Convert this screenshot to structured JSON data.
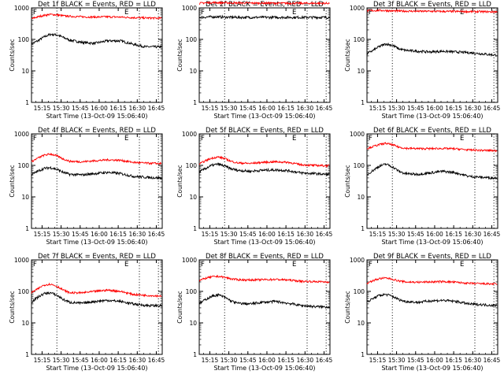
{
  "ylabel": "Counts/sec",
  "xlabel": "Start Time (13-Oct-09 15:06:40)",
  "xticks": [
    "15:15",
    "15:30",
    "15:45",
    "16:00",
    "16:15",
    "16:30",
    "16:45"
  ],
  "yticks": [
    "1",
    "10",
    "100",
    "1000"
  ],
  "colors": {
    "events": "#000000",
    "lld": "#ff0000"
  },
  "chart_data": [
    {
      "type": "line",
      "title": "Det 1f BLACK = Events, RED = LLD",
      "yscale": "log",
      "ylim": [
        1,
        1000
      ],
      "xlim_minutes": [
        0,
        103
      ],
      "markers": [
        {
          "x": 0,
          "label": "F"
        },
        {
          "x": 72,
          "label": "E"
        }
      ],
      "vlines": [
        20,
        85,
        100
      ],
      "series": [
        {
          "name": "Events",
          "color": "#000000",
          "x": [
            0,
            5,
            10,
            15,
            20,
            25,
            30,
            40,
            50,
            60,
            70,
            80,
            90,
            100
          ],
          "values": [
            70,
            90,
            120,
            145,
            140,
            115,
            95,
            80,
            75,
            90,
            90,
            70,
            58,
            58
          ]
        },
        {
          "name": "LLD",
          "color": "#ff0000",
          "x": [
            0,
            5,
            10,
            15,
            20,
            25,
            30,
            40,
            50,
            60,
            70,
            80,
            90,
            100
          ],
          "values": [
            450,
            520,
            580,
            620,
            600,
            560,
            540,
            520,
            510,
            520,
            510,
            490,
            480,
            470
          ]
        }
      ]
    },
    {
      "type": "line",
      "title": "Det 2f BLACK = Events, RED = LLD",
      "yscale": "log",
      "ylim": [
        1,
        1000
      ],
      "xlim_minutes": [
        0,
        103
      ],
      "markers": [
        {
          "x": 0,
          "label": "F"
        },
        {
          "x": 72,
          "label": "E"
        }
      ],
      "vlines": [
        20,
        85,
        100
      ],
      "series": [
        {
          "name": "Events",
          "color": "#000000",
          "x": [
            0,
            5,
            10,
            15,
            20,
            30,
            40,
            50,
            60,
            70,
            80,
            90,
            100
          ],
          "values": [
            500,
            510,
            520,
            520,
            510,
            500,
            500,
            500,
            500,
            500,
            500,
            500,
            500
          ]
        },
        {
          "name": "LLD",
          "color": "#ff0000",
          "x": [
            0,
            5,
            10,
            15,
            20,
            30,
            40,
            50,
            60,
            70,
            80,
            90,
            100
          ],
          "values": [
            1400,
            1450,
            1480,
            1460,
            1450,
            1430,
            1420,
            1420,
            1410,
            1410,
            1400,
            1400,
            1400
          ]
        }
      ]
    },
    {
      "type": "line",
      "title": "Det 3f BLACK = Events, RED = LLD",
      "yscale": "log",
      "ylim": [
        1,
        1000
      ],
      "xlim_minutes": [
        0,
        103
      ],
      "markers": [
        {
          "x": 0,
          "label": "F"
        },
        {
          "x": 72,
          "label": "E"
        }
      ],
      "vlines": [
        20,
        85,
        100
      ],
      "series": [
        {
          "name": "Events",
          "color": "#000000",
          "x": [
            0,
            5,
            10,
            15,
            20,
            25,
            30,
            40,
            50,
            60,
            70,
            80,
            90,
            100
          ],
          "values": [
            35,
            45,
            60,
            72,
            65,
            50,
            45,
            42,
            40,
            42,
            40,
            38,
            35,
            32
          ]
        },
        {
          "name": "LLD",
          "color": "#ff0000",
          "x": [
            0,
            5,
            10,
            15,
            20,
            30,
            40,
            50,
            60,
            70,
            80,
            90,
            100
          ],
          "values": [
            800,
            820,
            830,
            820,
            800,
            790,
            780,
            780,
            770,
            770,
            760,
            760,
            750
          ]
        }
      ]
    },
    {
      "type": "line",
      "title": "Det 4f BLACK = Events, RED = LLD",
      "yscale": "log",
      "ylim": [
        1,
        1000
      ],
      "xlim_minutes": [
        0,
        103
      ],
      "markers": [
        {
          "x": 0,
          "label": "F"
        },
        {
          "x": 72,
          "label": "E"
        }
      ],
      "vlines": [
        20,
        85,
        100
      ],
      "series": [
        {
          "name": "Events",
          "color": "#000000",
          "x": [
            0,
            5,
            10,
            15,
            20,
            25,
            30,
            40,
            50,
            60,
            70,
            80,
            90,
            100
          ],
          "values": [
            50,
            65,
            80,
            85,
            75,
            60,
            52,
            50,
            55,
            60,
            55,
            45,
            42,
            40
          ]
        },
        {
          "name": "LLD",
          "color": "#ff0000",
          "x": [
            0,
            5,
            10,
            15,
            20,
            25,
            30,
            40,
            50,
            60,
            70,
            80,
            90,
            100
          ],
          "values": [
            130,
            170,
            210,
            230,
            200,
            160,
            135,
            130,
            140,
            150,
            145,
            125,
            118,
            115
          ]
        }
      ]
    },
    {
      "type": "line",
      "title": "Det 5f BLACK = Events, RED = LLD",
      "yscale": "log",
      "ylim": [
        1,
        1000
      ],
      "xlim_minutes": [
        0,
        103
      ],
      "markers": [
        {
          "x": 0,
          "label": "F"
        },
        {
          "x": 72,
          "label": "E"
        }
      ],
      "vlines": [
        20,
        85,
        100
      ],
      "series": [
        {
          "name": "Events",
          "color": "#000000",
          "x": [
            0,
            5,
            10,
            15,
            20,
            25,
            30,
            40,
            50,
            60,
            70,
            80,
            90,
            100
          ],
          "values": [
            60,
            80,
            100,
            110,
            95,
            78,
            70,
            65,
            70,
            72,
            68,
            58,
            55,
            52
          ]
        },
        {
          "name": "LLD",
          "color": "#ff0000",
          "x": [
            0,
            5,
            10,
            15,
            20,
            25,
            30,
            40,
            50,
            60,
            70,
            80,
            90,
            100
          ],
          "values": [
            110,
            140,
            170,
            185,
            165,
            135,
            120,
            115,
            125,
            130,
            125,
            105,
            100,
            98
          ]
        }
      ]
    },
    {
      "type": "line",
      "title": "Det 6f BLACK = Events, RED = LLD",
      "yscale": "log",
      "ylim": [
        1,
        1000
      ],
      "xlim_minutes": [
        0,
        103
      ],
      "markers": [
        {
          "x": 0,
          "label": "F"
        },
        {
          "x": 72,
          "label": "E"
        }
      ],
      "vlines": [
        20,
        85,
        100
      ],
      "series": [
        {
          "name": "Events",
          "color": "#000000",
          "x": [
            0,
            5,
            10,
            15,
            20,
            25,
            30,
            40,
            50,
            60,
            70,
            80,
            90,
            100
          ],
          "values": [
            50,
            70,
            95,
            110,
            90,
            65,
            55,
            52,
            58,
            65,
            58,
            45,
            42,
            40
          ]
        },
        {
          "name": "LLD",
          "color": "#ff0000",
          "x": [
            0,
            5,
            10,
            15,
            20,
            25,
            30,
            40,
            50,
            60,
            70,
            80,
            90,
            100
          ],
          "values": [
            340,
            400,
            460,
            500,
            450,
            380,
            350,
            340,
            340,
            345,
            335,
            310,
            300,
            295
          ]
        }
      ]
    },
    {
      "type": "line",
      "title": "Det 7f BLACK = Events, RED = LLD",
      "yscale": "log",
      "ylim": [
        1,
        1000
      ],
      "xlim_minutes": [
        0,
        103
      ],
      "markers": [
        {
          "x": 0,
          "label": "F"
        },
        {
          "x": 72,
          "label": "E"
        }
      ],
      "vlines": [
        20,
        85,
        100
      ],
      "series": [
        {
          "name": "Events",
          "color": "#000000",
          "x": [
            0,
            5,
            10,
            15,
            20,
            25,
            30,
            40,
            50,
            60,
            70,
            80,
            90,
            100
          ],
          "values": [
            45,
            65,
            85,
            90,
            75,
            55,
            45,
            42,
            48,
            52,
            48,
            40,
            36,
            35
          ]
        },
        {
          "name": "LLD",
          "color": "#ff0000",
          "x": [
            0,
            5,
            10,
            15,
            20,
            25,
            30,
            40,
            50,
            60,
            70,
            80,
            90,
            100
          ],
          "values": [
            90,
            120,
            160,
            170,
            145,
            110,
            90,
            90,
            100,
            110,
            100,
            80,
            75,
            72
          ]
        }
      ]
    },
    {
      "type": "line",
      "title": "Det 8f BLACK = Events, RED = LLD",
      "yscale": "log",
      "ylim": [
        1,
        1000
      ],
      "xlim_minutes": [
        0,
        103
      ],
      "markers": [
        {
          "x": 0,
          "label": "F"
        },
        {
          "x": 72,
          "label": "E"
        }
      ],
      "vlines": [
        20,
        85,
        100
      ],
      "series": [
        {
          "name": "Events",
          "color": "#000000",
          "x": [
            0,
            5,
            10,
            15,
            20,
            25,
            30,
            40,
            50,
            60,
            70,
            80,
            90,
            100
          ],
          "values": [
            40,
            55,
            70,
            78,
            65,
            50,
            42,
            40,
            45,
            48,
            42,
            36,
            33,
            32
          ]
        },
        {
          "name": "LLD",
          "color": "#ff0000",
          "x": [
            0,
            5,
            10,
            15,
            20,
            25,
            30,
            40,
            50,
            60,
            70,
            80,
            90,
            100
          ],
          "values": [
            220,
            260,
            290,
            300,
            280,
            250,
            235,
            230,
            235,
            240,
            230,
            210,
            205,
            200
          ]
        }
      ]
    },
    {
      "type": "line",
      "title": "Det 9f BLACK = Events, RED = LLD",
      "yscale": "log",
      "ylim": [
        1,
        1000
      ],
      "xlim_minutes": [
        0,
        103
      ],
      "markers": [
        {
          "x": 0,
          "label": "F"
        },
        {
          "x": 72,
          "label": "E"
        }
      ],
      "vlines": [
        20,
        85,
        100
      ],
      "series": [
        {
          "name": "Events",
          "color": "#000000",
          "x": [
            0,
            5,
            10,
            15,
            20,
            25,
            30,
            40,
            50,
            60,
            70,
            80,
            90,
            100
          ],
          "values": [
            45,
            60,
            75,
            80,
            70,
            55,
            48,
            45,
            50,
            52,
            48,
            40,
            38,
            36
          ]
        },
        {
          "name": "LLD",
          "color": "#ff0000",
          "x": [
            0,
            5,
            10,
            15,
            20,
            25,
            30,
            40,
            50,
            60,
            70,
            80,
            90,
            100
          ],
          "values": [
            180,
            220,
            255,
            265,
            245,
            215,
            200,
            195,
            200,
            205,
            195,
            180,
            175,
            172
          ]
        }
      ]
    }
  ]
}
